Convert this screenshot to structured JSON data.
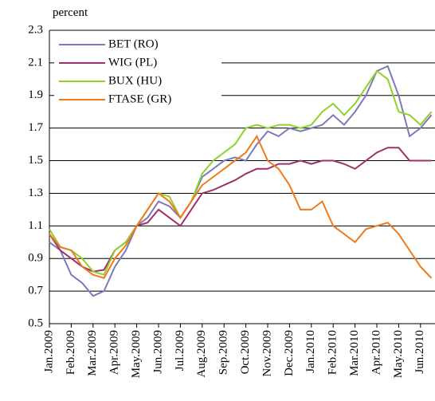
{
  "chart_data": {
    "type": "line",
    "y_label": "percent",
    "categories": [
      "Jan.2009",
      null,
      "Feb.2009",
      null,
      "Mar.2009",
      null,
      "Apr.2009",
      null,
      "May.2009",
      null,
      "Jun.2009",
      null,
      "Jul.2009",
      null,
      "Aug.2009",
      null,
      "Sep.2009",
      null,
      "Oct.2009",
      null,
      "Nov.2009",
      null,
      "Dec.2009",
      null,
      "Jan.2010",
      null,
      "Feb.2010",
      null,
      "Mar.2010",
      null,
      "Apr.2010",
      null,
      "May.2010",
      null,
      "Jun.2010",
      null
    ],
    "series": [
      {
        "name": "BET (RO)",
        "color": "#7b7bb5",
        "values": [
          1.0,
          0.95,
          0.8,
          0.75,
          0.67,
          0.7,
          0.85,
          0.95,
          1.1,
          1.15,
          1.25,
          1.22,
          1.15,
          1.25,
          1.4,
          1.45,
          1.5,
          1.52,
          1.5,
          1.6,
          1.68,
          1.65,
          1.7,
          1.68,
          1.7,
          1.72,
          1.78,
          1.72,
          1.8,
          1.9,
          2.05,
          2.08,
          1.9,
          1.65,
          1.7,
          1.78
        ]
      },
      {
        "name": "WIG (PL)",
        "color": "#a0306a",
        "values": [
          1.05,
          0.95,
          0.9,
          0.85,
          0.82,
          0.83,
          0.95,
          1.0,
          1.1,
          1.12,
          1.2,
          1.15,
          1.1,
          1.2,
          1.3,
          1.32,
          1.35,
          1.38,
          1.42,
          1.45,
          1.45,
          1.48,
          1.48,
          1.5,
          1.48,
          1.5,
          1.5,
          1.48,
          1.45,
          1.5,
          1.55,
          1.58,
          1.58,
          1.5,
          1.5,
          1.5
        ]
      },
      {
        "name": "BUX (HU)",
        "color": "#8fd12d",
        "values": [
          1.08,
          0.97,
          0.95,
          0.9,
          0.82,
          0.8,
          0.95,
          1.0,
          1.1,
          1.2,
          1.3,
          1.28,
          1.15,
          1.25,
          1.42,
          1.5,
          1.55,
          1.6,
          1.7,
          1.72,
          1.7,
          1.72,
          1.72,
          1.7,
          1.72,
          1.8,
          1.85,
          1.78,
          1.85,
          1.95,
          2.05,
          2.0,
          1.8,
          1.78,
          1.72,
          1.8
        ]
      },
      {
        "name": "FTASE (GR)",
        "color": "#f07a1a",
        "values": [
          1.05,
          0.97,
          0.95,
          0.85,
          0.8,
          0.78,
          0.9,
          0.98,
          1.1,
          1.2,
          1.3,
          1.25,
          1.15,
          1.25,
          1.35,
          1.4,
          1.45,
          1.5,
          1.55,
          1.65,
          1.5,
          1.45,
          1.35,
          1.2,
          1.2,
          1.25,
          1.1,
          1.05,
          1.0,
          1.08,
          1.1,
          1.12,
          1.05,
          0.95,
          0.85,
          0.78
        ]
      }
    ],
    "ylim": [
      0.5,
      2.3
    ],
    "yticks": [
      0.5,
      0.7,
      0.9,
      1.1,
      1.3,
      1.5,
      1.7,
      1.9,
      2.1,
      2.3
    ],
    "grid": true,
    "legend": "top-left"
  }
}
